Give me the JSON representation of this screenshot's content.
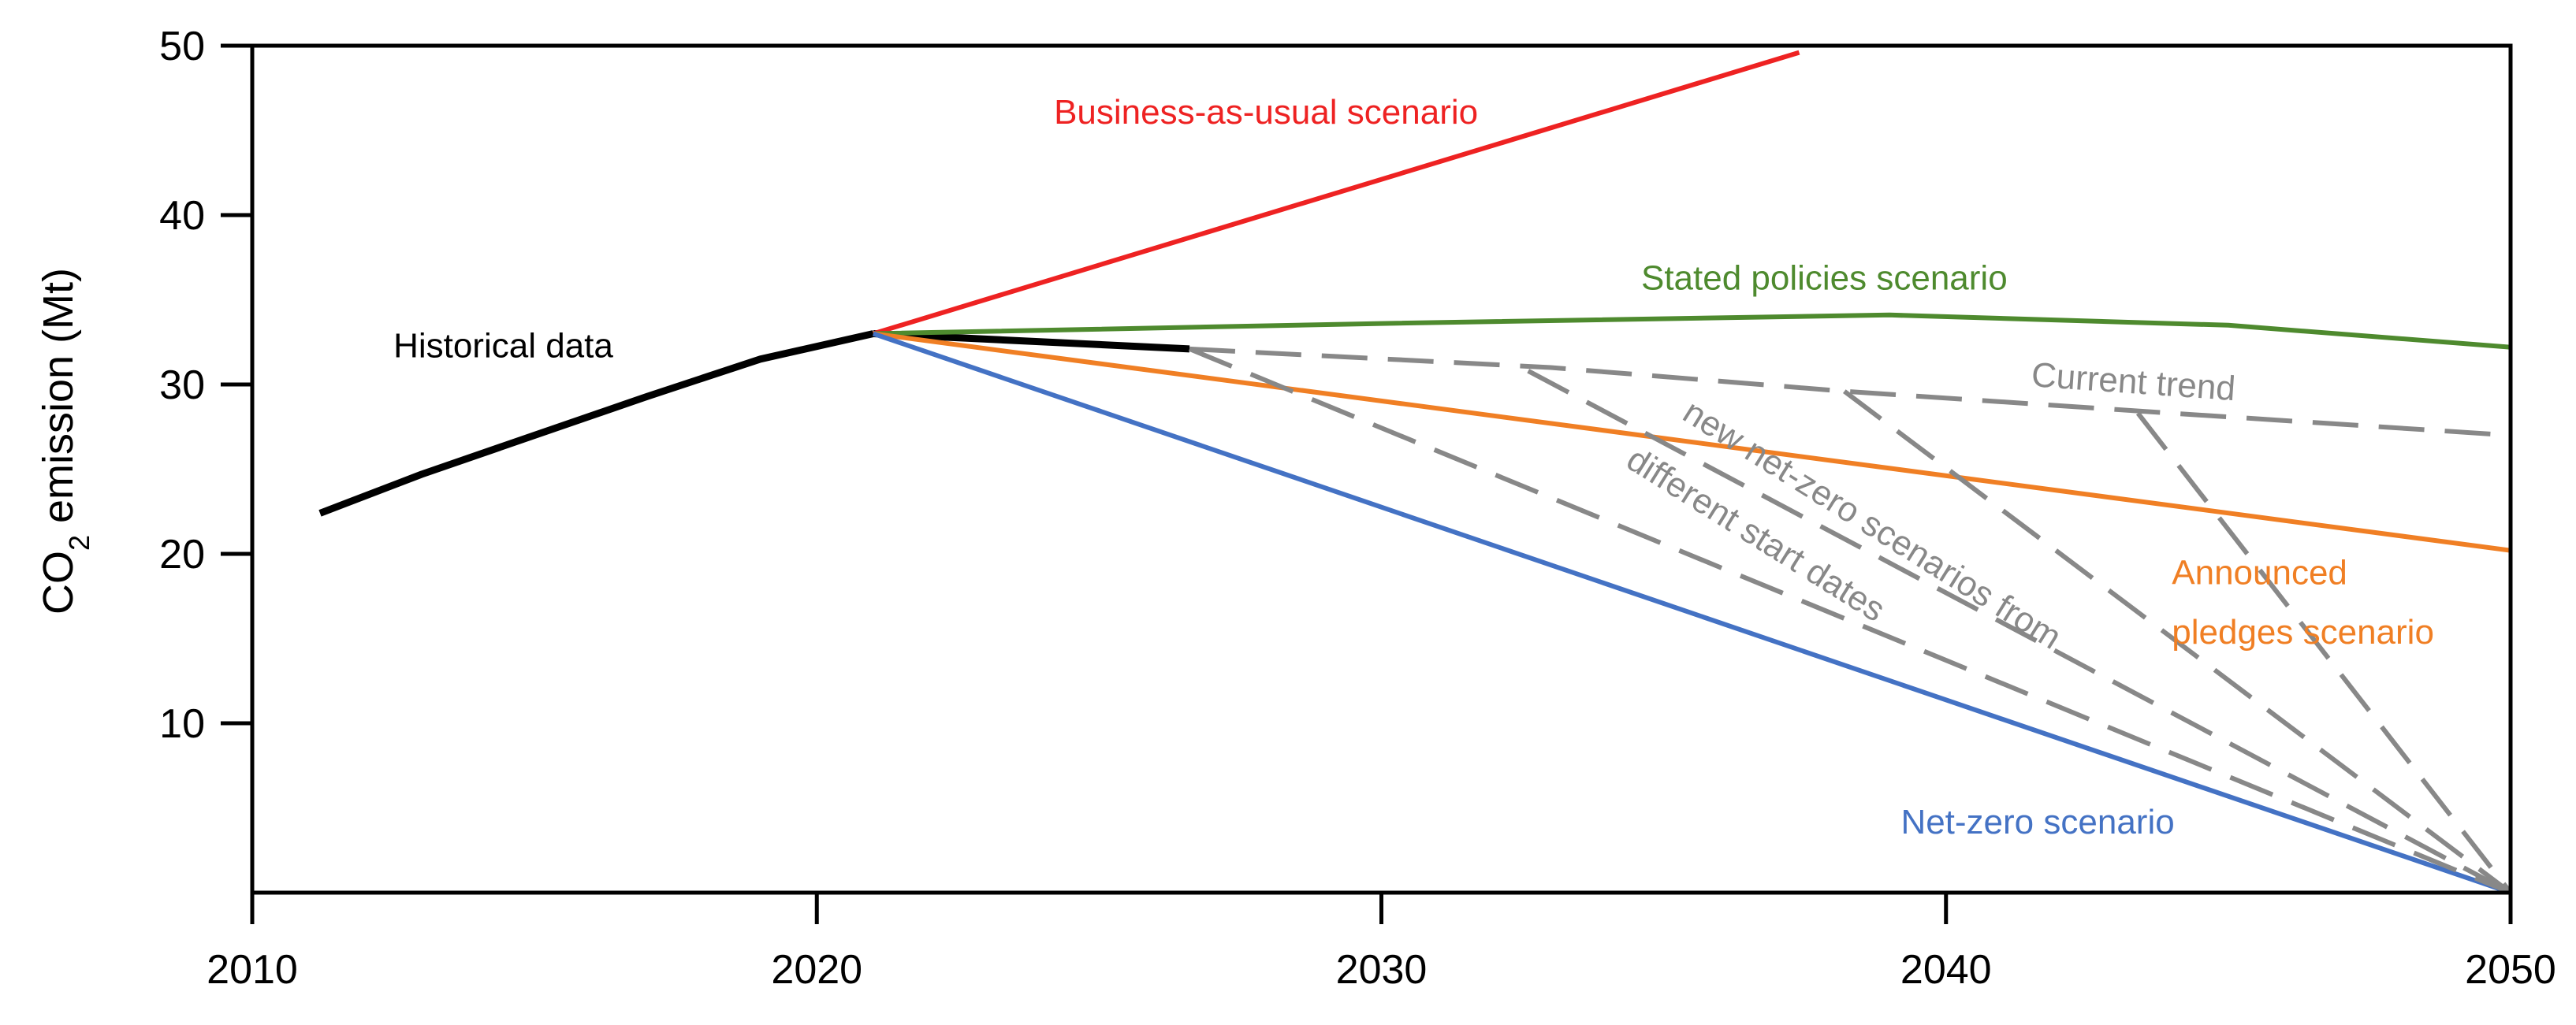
{
  "chart_data": {
    "type": "line",
    "title": "",
    "xlabel": "",
    "ylabel_parts": [
      "CO",
      "2",
      " emission (Mt)"
    ],
    "xlim": [
      2010,
      2050
    ],
    "ylim": [
      0,
      50
    ],
    "x_ticks": [
      2010,
      2020,
      2030,
      2040,
      2050
    ],
    "y_ticks": [
      10,
      20,
      30,
      40,
      50
    ],
    "grid": false,
    "legend": "none",
    "series": [
      {
        "label": "Historical data",
        "color": "#000000",
        "dash": "solid",
        "x": [
          2011.2,
          2013,
          2015,
          2017,
          2019,
          2021
        ],
        "y": [
          22.4,
          24.7,
          27.0,
          29.3,
          31.5,
          33.0
        ]
      },
      {
        "label": "",
        "color": "#000000",
        "dash": "solid",
        "x": [
          2021,
          2026.6
        ],
        "y": [
          33.0,
          32.1
        ]
      },
      {
        "label": "Business-as-usual scenario",
        "color": "#ee2222",
        "dash": "solid",
        "x": [
          2021,
          2037.4
        ],
        "y": [
          33.0,
          49.6
        ]
      },
      {
        "label": "Stated policies scenario",
        "color": "#4e8a2e",
        "dash": "solid",
        "x": [
          2021,
          2030,
          2039,
          2045,
          2050
        ],
        "y": [
          33.0,
          33.6,
          34.1,
          33.5,
          32.2
        ]
      },
      {
        "label": "Current trend",
        "color": "#888888",
        "dash": "dashed",
        "x": [
          2026.6,
          2033,
          2038.2,
          2044,
          2050
        ],
        "y": [
          32.1,
          31.0,
          29.6,
          28.3,
          27.0
        ]
      },
      {
        "label": "Announced pledges scenario",
        "color": "#f07f24",
        "dash": "solid",
        "x": [
          2021,
          2050
        ],
        "y": [
          33.0,
          20.2
        ]
      },
      {
        "label": "Net-zero scenario",
        "color": "#4472c4",
        "dash": "solid",
        "x": [
          2021,
          2050
        ],
        "y": [
          33.0,
          0
        ]
      },
      {
        "label": "",
        "color": "#888888",
        "dash": "dashed",
        "x": [
          2026.6,
          2050
        ],
        "y": [
          32.1,
          0
        ]
      },
      {
        "label": "",
        "color": "#888888",
        "dash": "dashed",
        "x": [
          2032.6,
          2050
        ],
        "y": [
          30.8,
          0
        ]
      },
      {
        "label": "",
        "color": "#888888",
        "dash": "dashed",
        "x": [
          2038.2,
          2050
        ],
        "y": [
          29.6,
          0
        ]
      },
      {
        "label": "",
        "color": "#888888",
        "dash": "dashed",
        "x": [
          2043.4,
          2050
        ],
        "y": [
          28.3,
          0
        ]
      }
    ],
    "annotations": [
      {
        "id": "historical",
        "text": "Historical data",
        "x": 2012.5,
        "y": 31.6,
        "color": "#000000",
        "rotate": 0
      },
      {
        "id": "bau",
        "text": "Business-as-usual scenario",
        "x": 2024.2,
        "y": 45.4,
        "color": "#ee2222",
        "rotate": 0
      },
      {
        "id": "stated",
        "text": "Stated policies scenario",
        "x": 2034.6,
        "y": 35.6,
        "color": "#4e8a2e",
        "rotate": 0
      },
      {
        "id": "current",
        "text": "Current trend",
        "x": 2041.5,
        "y": 29.9,
        "color": "#888888",
        "rotate": 4
      },
      {
        "id": "newnz1",
        "text": "new net-zero scenarios from",
        "x": 2035.3,
        "y": 28.0,
        "color": "#888888",
        "rotate": 32
      },
      {
        "id": "newnz2",
        "text": "different start dates",
        "x": 2034.3,
        "y": 25.2,
        "color": "#888888",
        "rotate": 32
      },
      {
        "id": "announced1",
        "text": "Announced",
        "x": 2044,
        "y": 18.2,
        "color": "#f07f24",
        "rotate": 0
      },
      {
        "id": "announced2",
        "text": "pledges scenario",
        "x": 2044,
        "y": 14.7,
        "color": "#f07f24",
        "rotate": 0
      },
      {
        "id": "netzero",
        "text": "Net-zero scenario",
        "x": 2039.2,
        "y": 3.5,
        "color": "#4472c4",
        "rotate": 0
      }
    ]
  }
}
